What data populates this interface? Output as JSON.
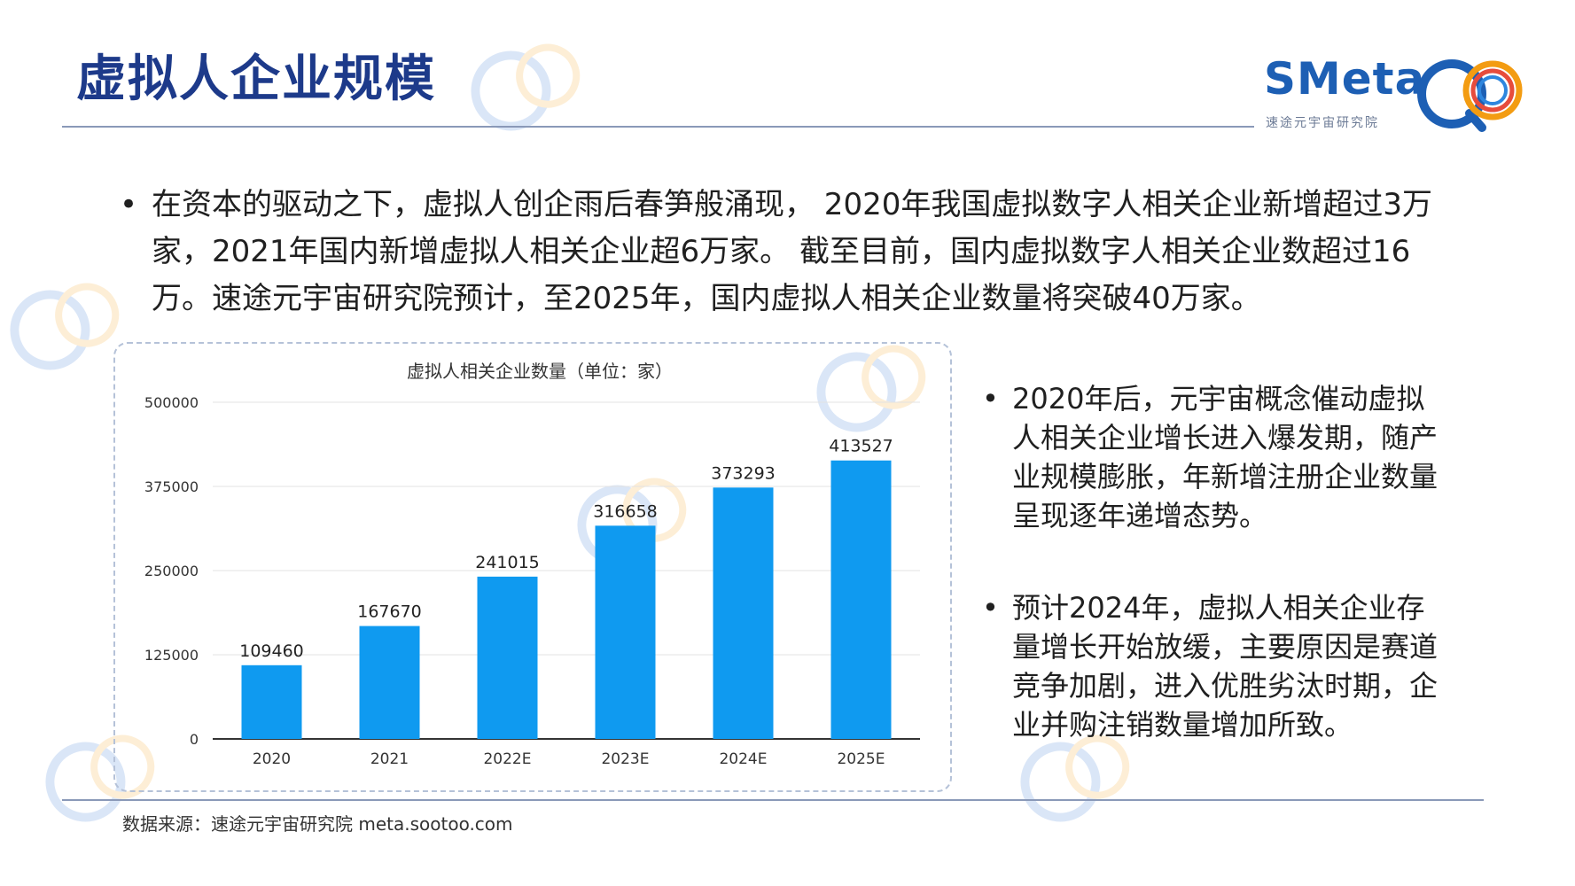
{
  "header": {
    "title": "虚拟人企业规模"
  },
  "logo": {
    "text": "SMeta",
    "subtitle": "速途元宇宙研究院",
    "icon": "smeta-logo-icon"
  },
  "watermark": {
    "text": "SMeta",
    "subtext": "速途元宇宙研究院"
  },
  "intro": {
    "bullet": "•",
    "text": "在资本的驱动之下，虚拟人创企雨后春笋般涌现， 2020年我国虚拟数字人相关企业新增超过3万家，2021年国内新增虚拟人相关企业超6万家。 截至目前，国内虚拟数字人相关企业数超过16万。速途元宇宙研究院预计，至2025年，国内虚拟人相关企业数量将突破40万家。"
  },
  "side_points": [
    {
      "bullet": "•",
      "text": "2020年后，元宇宙概念催动虚拟人相关企业增长进入爆发期，随产业规模膨胀，年新增注册企业数量呈现逐年递增态势。"
    },
    {
      "bullet": "•",
      "text": "预计2024年，虚拟人相关企业存量增长开始放缓，主要原因是赛道竞争加剧，进入优胜劣汰时期，企业并购注销数量增加所致。"
    }
  ],
  "footer": {
    "source": "数据来源：速途元宇宙研究院 meta.sootoo.com"
  },
  "colors": {
    "title": "#1d3a8a",
    "bar": "#0f9af0",
    "grid": "#e3e3e3",
    "axis": "#333333"
  },
  "chart_data": {
    "type": "bar",
    "title": "虚拟人相关企业数量（单位：家）",
    "categories": [
      "2020",
      "2021",
      "2022E",
      "2023E",
      "2024E",
      "2025E"
    ],
    "values": [
      109460,
      167670,
      241015,
      316658,
      373293,
      413527
    ],
    "value_labels": [
      "109460",
      "167670",
      "241015",
      "316658",
      "373293",
      "413527"
    ],
    "ylim": [
      0,
      500000
    ],
    "yticks": [
      0,
      125000,
      250000,
      375000,
      500000
    ],
    "ytick_labels": [
      "0",
      "125000",
      "250000",
      "375000",
      "500000"
    ],
    "xlabel": "",
    "ylabel": "",
    "grid": true,
    "legend": "none"
  }
}
